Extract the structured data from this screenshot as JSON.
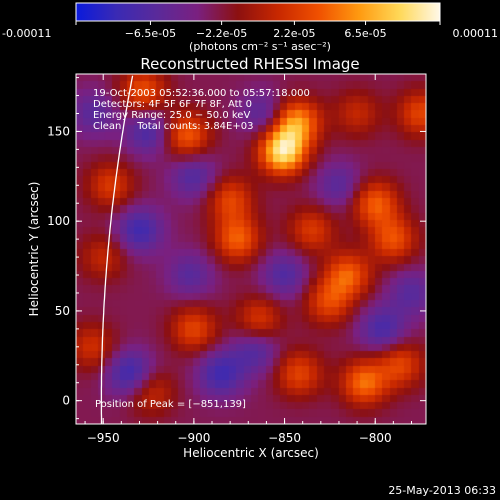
{
  "chart_data": {
    "type": "heatmap",
    "title": "Reconstructed RHESSI Image",
    "xlabel": "Heliocentric X (arcsec)",
    "ylabel": "Heliocentric Y (arcsec)",
    "xlim": [
      -965,
      -772
    ],
    "ylim": [
      -13,
      182
    ],
    "x_ticks": [
      -950,
      -900,
      -850,
      -800
    ],
    "x_tick_labels": [
      "−950",
      "−900",
      "−850",
      "−800"
    ],
    "y_ticks": [
      0,
      50,
      100,
      150
    ],
    "y_tick_labels": [
      "0",
      "50",
      "100",
      "150"
    ],
    "colorbar": {
      "ticks": [
        -0.00011,
        -6.5e-05,
        -2.2e-05,
        2.2e-05,
        6.5e-05,
        0.00011
      ],
      "tick_labels": [
        "-0.00011",
        "−6.5e-05",
        "−2.2e-05",
        "2.2e-05",
        "6.5e-05",
        "0.00011"
      ],
      "unit": "(photons cm⁻² s⁻¹ asec⁻²)",
      "range": [
        -0.00011,
        0.00011
      ],
      "colormap": [
        "#0a1adc",
        "#3a2ab4",
        "#5a2a9a",
        "#7a2080",
        "#8c1010",
        "#c82800",
        "#f05000",
        "#ff9a10",
        "#ffd858",
        "#fff8e8"
      ]
    },
    "annotations": [
      "19-Oct-2003 05:52:36.000 to 05:57:18.000",
      "Detectors: 4F 5F 6F 7F 8F, Att 0",
      "Energy Range: 25.0 − 50.0 keV",
      "Clean     Total counts: 3.84E+03"
    ],
    "peak_label": "Position of Peak = [−851,139]",
    "peak": [
      -851,
      139
    ],
    "limb_visible": true,
    "sources": [
      {
        "x": -851,
        "y": 139,
        "v": 1.0
      },
      {
        "x": -843,
        "y": 155,
        "v": 0.7
      },
      {
        "x": -904,
        "y": 148,
        "v": 0.55
      },
      {
        "x": -928,
        "y": 172,
        "v": 0.5
      },
      {
        "x": -880,
        "y": 112,
        "v": 0.45
      },
      {
        "x": -876,
        "y": 90,
        "v": 0.55
      },
      {
        "x": -835,
        "y": 95,
        "v": 0.4
      },
      {
        "x": -815,
        "y": 70,
        "v": 0.55
      },
      {
        "x": -800,
        "y": 110,
        "v": 0.55
      },
      {
        "x": -790,
        "y": 90,
        "v": 0.5
      },
      {
        "x": -826,
        "y": 55,
        "v": 0.45
      },
      {
        "x": -946,
        "y": 120,
        "v": 0.4
      },
      {
        "x": -956,
        "y": 30,
        "v": 0.35
      },
      {
        "x": -900,
        "y": 40,
        "v": 0.45
      },
      {
        "x": -864,
        "y": 45,
        "v": 0.4
      },
      {
        "x": -842,
        "y": 15,
        "v": 0.45
      },
      {
        "x": -806,
        "y": 10,
        "v": 0.6
      },
      {
        "x": -786,
        "y": 20,
        "v": 0.45
      },
      {
        "x": -924,
        "y": 5,
        "v": 0.35
      },
      {
        "x": -950,
        "y": 80,
        "v": 0.3
      },
      {
        "x": -775,
        "y": 160,
        "v": 0.45
      },
      {
        "x": -810,
        "y": 160,
        "v": 0.3
      },
      {
        "x": -925,
        "y": 150,
        "v": -0.4
      },
      {
        "x": -900,
        "y": 125,
        "v": -0.35
      },
      {
        "x": -862,
        "y": 160,
        "v": -0.3
      },
      {
        "x": -930,
        "y": 95,
        "v": -0.45
      },
      {
        "x": -902,
        "y": 70,
        "v": -0.3
      },
      {
        "x": -850,
        "y": 70,
        "v": -0.35
      },
      {
        "x": -820,
        "y": 120,
        "v": -0.3
      },
      {
        "x": -796,
        "y": 40,
        "v": -0.4
      },
      {
        "x": -935,
        "y": 15,
        "v": -0.5
      },
      {
        "x": -885,
        "y": 15,
        "v": -0.45
      },
      {
        "x": -866,
        "y": 28,
        "v": -0.35
      },
      {
        "x": -955,
        "y": 160,
        "v": -0.3
      },
      {
        "x": -780,
        "y": 60,
        "v": -0.3
      }
    ]
  },
  "footer": {
    "timestamp": "25-May-2013 06:33"
  }
}
